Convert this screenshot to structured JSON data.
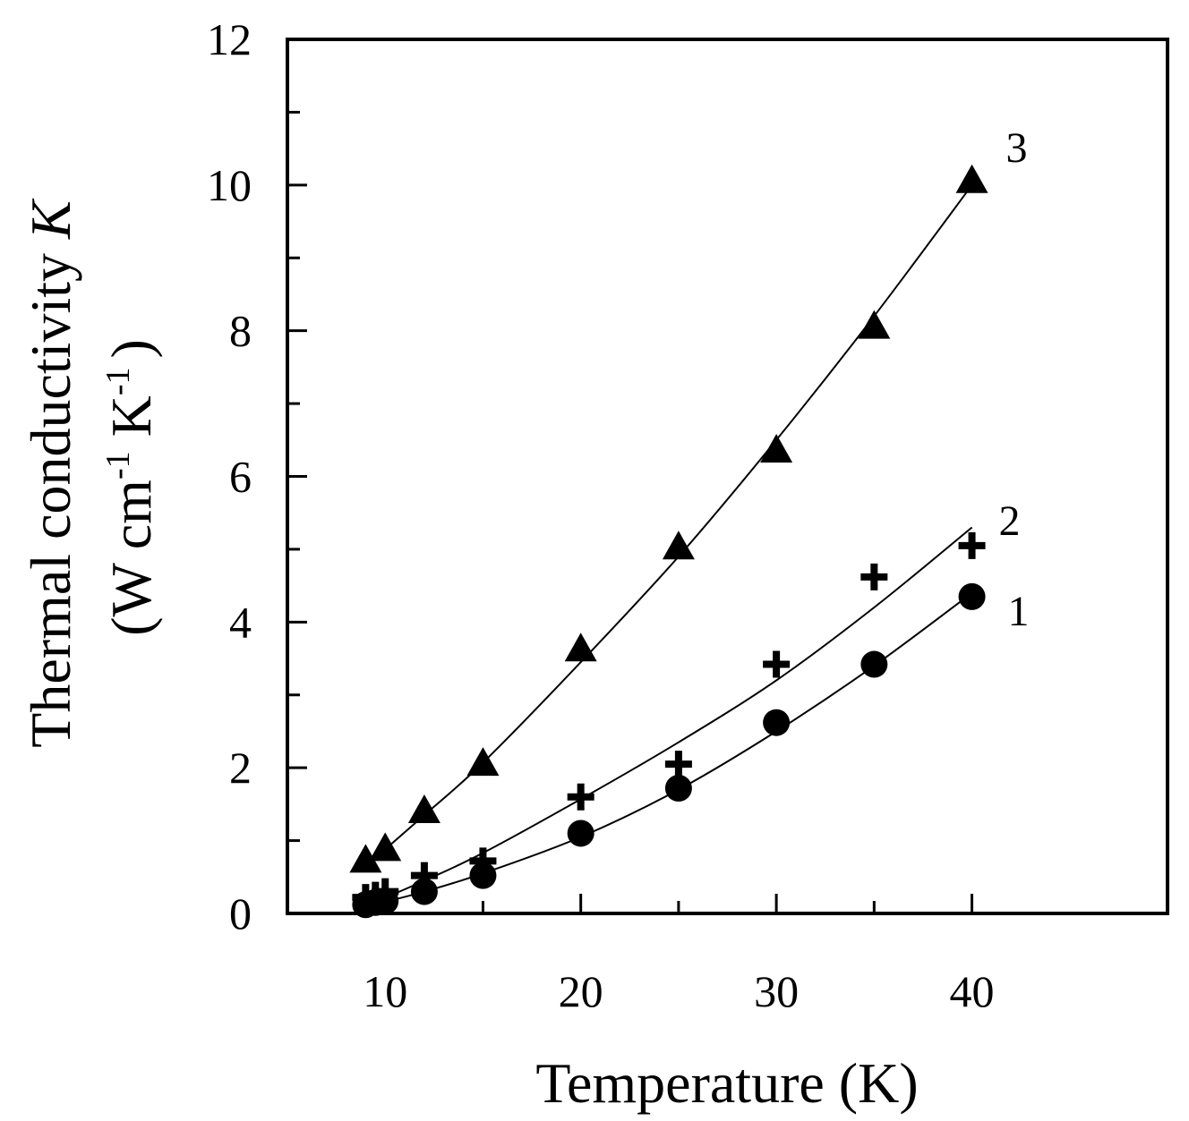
{
  "chart_data": {
    "type": "scatter",
    "title": "",
    "xlabel": "Temperature (K)",
    "ylabel": {
      "line1_prefix": "Thermal conductivity ",
      "line1_symbol": "K",
      "line2_open": "(W cm",
      "line2_sup1": "-1",
      "line2_mid": " K",
      "line2_sup2": "-1",
      "line2_close": ")"
    },
    "xlim": [
      5,
      50
    ],
    "ylim": [
      0,
      12
    ],
    "x_ticks": [
      10,
      20,
      30,
      40
    ],
    "y_ticks": [
      0,
      2,
      4,
      6,
      8,
      10,
      12
    ],
    "y_minor_ticks": [
      1,
      3,
      5,
      7,
      9,
      11
    ],
    "x_minor_ticks": [
      15,
      25,
      35
    ],
    "grid": false,
    "legend": "none",
    "series": [
      {
        "name": "1",
        "marker": "circle",
        "points": [
          [
            9,
            0.12
          ],
          [
            9.5,
            0.15
          ],
          [
            10,
            0.17
          ],
          [
            12,
            0.3
          ],
          [
            15,
            0.52
          ],
          [
            20,
            1.1
          ],
          [
            25,
            1.72
          ],
          [
            30,
            2.62
          ],
          [
            35,
            3.42
          ],
          [
            40,
            4.35
          ]
        ],
        "fit": [
          [
            9,
            0.1
          ],
          [
            10,
            0.16
          ],
          [
            12,
            0.3
          ],
          [
            15,
            0.55
          ],
          [
            20,
            1.05
          ],
          [
            25,
            1.7
          ],
          [
            30,
            2.5
          ],
          [
            35,
            3.4
          ],
          [
            40,
            4.4
          ]
        ]
      },
      {
        "name": "2",
        "marker": "plus",
        "points": [
          [
            9,
            0.22
          ],
          [
            9.5,
            0.25
          ],
          [
            10,
            0.3
          ],
          [
            12,
            0.52
          ],
          [
            15,
            0.72
          ],
          [
            20,
            1.6
          ],
          [
            25,
            2.05
          ],
          [
            30,
            3.42
          ],
          [
            35,
            4.62
          ],
          [
            40,
            5.05
          ]
        ],
        "fit": [
          [
            9,
            0.15
          ],
          [
            10,
            0.22
          ],
          [
            12,
            0.45
          ],
          [
            15,
            0.83
          ],
          [
            20,
            1.57
          ],
          [
            25,
            2.35
          ],
          [
            30,
            3.2
          ],
          [
            35,
            4.2
          ],
          [
            40,
            5.3
          ]
        ]
      },
      {
        "name": "3",
        "marker": "triangle",
        "points": [
          [
            9,
            0.72
          ],
          [
            10,
            0.88
          ],
          [
            12,
            1.4
          ],
          [
            15,
            2.05
          ],
          [
            20,
            3.62
          ],
          [
            25,
            5.02
          ],
          [
            30,
            6.35
          ],
          [
            35,
            8.05
          ],
          [
            40,
            10.05
          ]
        ],
        "fit": [
          [
            9,
            0.65
          ],
          [
            10,
            0.88
          ],
          [
            12,
            1.35
          ],
          [
            15,
            2.07
          ],
          [
            20,
            3.45
          ],
          [
            25,
            4.9
          ],
          [
            30,
            6.5
          ],
          [
            35,
            8.2
          ],
          [
            40,
            10.0
          ]
        ]
      }
    ]
  }
}
